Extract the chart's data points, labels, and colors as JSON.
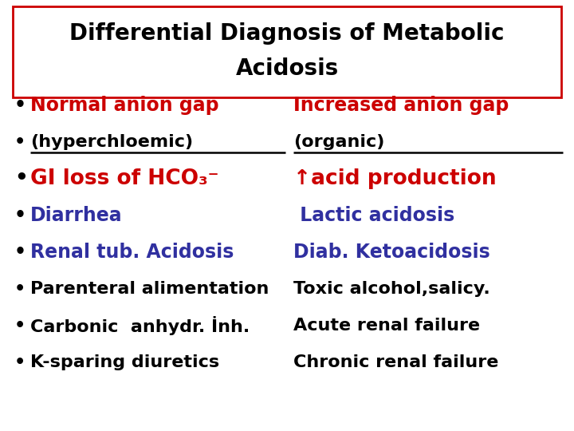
{
  "title_line1": "Differential Diagnosis of Metabolic",
  "title_line2": "Acidosis",
  "title_color": "#000000",
  "title_box_color": "#cc0000",
  "background_color": "#ffffff",
  "rows": [
    {
      "bullet": true,
      "left_text": "Normal anion gap",
      "left_color": "#cc0000",
      "right_text": "Increased anion gap",
      "right_color": "#cc0000",
      "fontsize": 17
    },
    {
      "bullet": true,
      "left_text": "(hyperchloemic)",
      "left_color": "#000000",
      "right_text": "(organic)",
      "right_color": "#000000",
      "underline": true,
      "fontsize": 16
    },
    {
      "bullet": true,
      "left_text": "GI loss of HCO₃⁻",
      "left_color": "#cc0000",
      "right_text": "↑acid production",
      "right_color": "#cc0000",
      "fontsize": 19
    },
    {
      "bullet": true,
      "left_text": "Diarrhea",
      "left_color": "#3030a0",
      "right_text": " Lactic acidosis",
      "right_color": "#3030a0",
      "fontsize": 17
    },
    {
      "bullet": true,
      "left_text": "Renal tub. Acidosis",
      "left_color": "#3030a0",
      "right_text": "Diab. Ketoacidosis",
      "right_color": "#3030a0",
      "fontsize": 17
    },
    {
      "bullet": true,
      "left_text": "Parenteral alimentation",
      "left_color": "#000000",
      "right_text": "Toxic alcohol,salicy.",
      "right_color": "#000000",
      "fontsize": 16
    },
    {
      "bullet": true,
      "left_text": "Carbonic  anhydr. İnh.",
      "left_color": "#000000",
      "right_text": "Acute renal failure",
      "right_color": "#000000",
      "fontsize": 16
    },
    {
      "bullet": true,
      "left_text": "K-sparing diuretics",
      "left_color": "#000000",
      "right_text": "Chronic renal failure",
      "right_color": "#000000",
      "fontsize": 16
    }
  ]
}
